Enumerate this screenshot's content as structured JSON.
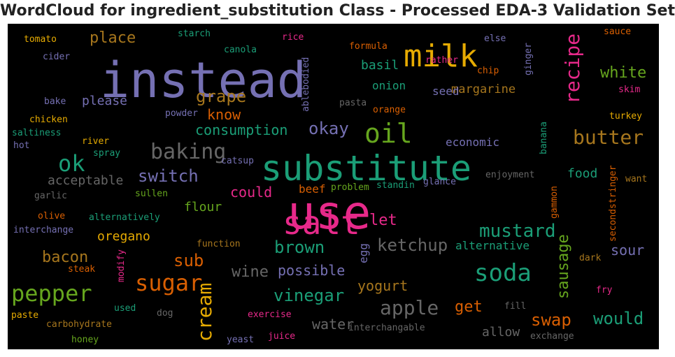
{
  "chart_data": {
    "type": "wordcloud",
    "title": "WordCloud for ingredient_substitution Class - Processed EDA-3 Validation Set",
    "background": "#000000",
    "colors": [
      "#1b9e77",
      "#d95f02",
      "#7570b3",
      "#e7298a",
      "#66a61e",
      "#e6ab02",
      "#a6761d",
      "#666666"
    ],
    "words": [
      {
        "text": "use",
        "color": "#e7298a"
      },
      {
        "text": "substitute",
        "color": "#1b9e77"
      },
      {
        "text": "instead",
        "color": "#7570b3"
      },
      {
        "text": "salt",
        "color": "#e7298a"
      },
      {
        "text": "milk",
        "color": "#e6ab02"
      },
      {
        "text": "oil",
        "color": "#66a61e"
      },
      {
        "text": "sugar",
        "color": "#d95f02"
      },
      {
        "text": "soda",
        "color": "#1b9e77"
      },
      {
        "text": "baking",
        "color": "#666666"
      },
      {
        "text": "ok",
        "color": "#1b9e77"
      },
      {
        "text": "pepper",
        "color": "#66a61e"
      },
      {
        "text": "butter",
        "color": "#a6761d"
      },
      {
        "text": "cream",
        "color": "#e6ab02"
      },
      {
        "text": "recipe",
        "color": "#e7298a"
      },
      {
        "text": "apple",
        "color": "#666666"
      },
      {
        "text": "mustard",
        "color": "#1b9e77"
      },
      {
        "text": "ketchup",
        "color": "#666666"
      },
      {
        "text": "vinegar",
        "color": "#1b9e77"
      },
      {
        "text": "okay",
        "color": "#7570b3"
      },
      {
        "text": "grape",
        "color": "#a6761d"
      },
      {
        "text": "switch",
        "color": "#7570b3"
      },
      {
        "text": "swap",
        "color": "#d95f02"
      },
      {
        "text": "would",
        "color": "#1b9e77"
      },
      {
        "text": "brown",
        "color": "#1b9e77"
      },
      {
        "text": "sub",
        "color": "#d95f02"
      },
      {
        "text": "white",
        "color": "#66a61e"
      },
      {
        "text": "consumption",
        "color": "#1b9e77"
      },
      {
        "text": "place",
        "color": "#a6761d"
      },
      {
        "text": "bacon",
        "color": "#a6761d"
      },
      {
        "text": "sausage",
        "color": "#66a61e"
      },
      {
        "text": "could",
        "color": "#e7298a"
      },
      {
        "text": "let",
        "color": "#e7298a"
      },
      {
        "text": "yogurt",
        "color": "#a6761d"
      },
      {
        "text": "wine",
        "color": "#666666"
      },
      {
        "text": "possible",
        "color": "#7570b3"
      },
      {
        "text": "sour",
        "color": "#7570b3"
      },
      {
        "text": "know",
        "color": "#d95f02"
      },
      {
        "text": "get",
        "color": "#d95f02"
      },
      {
        "text": "water",
        "color": "#666666"
      },
      {
        "text": "acceptable",
        "color": "#666666"
      },
      {
        "text": "oregano",
        "color": "#e6ab02"
      },
      {
        "text": "flour",
        "color": "#66a61e"
      },
      {
        "text": "food",
        "color": "#1b9e77"
      },
      {
        "text": "please",
        "color": "#7570b3"
      },
      {
        "text": "margarine",
        "color": "#a6761d"
      },
      {
        "text": "economic",
        "color": "#7570b3"
      },
      {
        "text": "alternative",
        "color": "#1b9e77"
      },
      {
        "text": "allow",
        "color": "#666666"
      },
      {
        "text": "onion",
        "color": "#1b9e77"
      },
      {
        "text": "seed",
        "color": "#7570b3"
      },
      {
        "text": "basil",
        "color": "#1b9e77"
      },
      {
        "text": "beef",
        "color": "#d95f02"
      },
      {
        "text": "egg",
        "color": "#7570b3"
      },
      {
        "text": "tomato",
        "color": "#e6ab02"
      },
      {
        "text": "starch",
        "color": "#1b9e77"
      },
      {
        "text": "rice",
        "color": "#e7298a"
      },
      {
        "text": "sauce",
        "color": "#d95f02"
      },
      {
        "text": "cider",
        "color": "#7570b3"
      },
      {
        "text": "canola",
        "color": "#1b9e77"
      },
      {
        "text": "formula",
        "color": "#d95f02"
      },
      {
        "text": "else",
        "color": "#7570b3"
      },
      {
        "text": "rather",
        "color": "#e7298a"
      },
      {
        "text": "chip",
        "color": "#d95f02"
      },
      {
        "text": "ginger",
        "color": "#7570b3"
      },
      {
        "text": "ablebodied",
        "color": "#7570b3"
      },
      {
        "text": "skim",
        "color": "#e7298a"
      },
      {
        "text": "bake",
        "color": "#7570b3"
      },
      {
        "text": "pasta",
        "color": "#666666"
      },
      {
        "text": "orange",
        "color": "#d95f02"
      },
      {
        "text": "chicken",
        "color": "#e6ab02"
      },
      {
        "text": "powder",
        "color": "#7570b3"
      },
      {
        "text": "turkey",
        "color": "#e6ab02"
      },
      {
        "text": "saltiness",
        "color": "#1b9e77"
      },
      {
        "text": "river",
        "color": "#e6ab02"
      },
      {
        "text": "hot",
        "color": "#7570b3"
      },
      {
        "text": "spray",
        "color": "#1b9e77"
      },
      {
        "text": "catsup",
        "color": "#7570b3"
      },
      {
        "text": "banana",
        "color": "#1b9e77"
      },
      {
        "text": "secondstringer",
        "color": "#d95f02"
      },
      {
        "text": "enjoyment",
        "color": "#666666"
      },
      {
        "text": "garlic",
        "color": "#666666"
      },
      {
        "text": "standin",
        "color": "#1b9e77"
      },
      {
        "text": "glance",
        "color": "#7570b3"
      },
      {
        "text": "problem",
        "color": "#66a61e"
      },
      {
        "text": "want",
        "color": "#a6761d"
      },
      {
        "text": "sullen",
        "color": "#66a61e"
      },
      {
        "text": "gammon",
        "color": "#d95f02"
      },
      {
        "text": "olive",
        "color": "#d95f02"
      },
      {
        "text": "alternatively",
        "color": "#1b9e77"
      },
      {
        "text": "interchange",
        "color": "#7570b3"
      },
      {
        "text": "function",
        "color": "#a6761d"
      },
      {
        "text": "dark",
        "color": "#a6761d"
      },
      {
        "text": "steak",
        "color": "#d95f02"
      },
      {
        "text": "modify",
        "color": "#e7298a"
      },
      {
        "text": "fry",
        "color": "#e7298a"
      },
      {
        "text": "used",
        "color": "#1b9e77"
      },
      {
        "text": "dog",
        "color": "#666666"
      },
      {
        "text": "exercise",
        "color": "#e7298a"
      },
      {
        "text": "fill",
        "color": "#666666"
      },
      {
        "text": "paste",
        "color": "#e6ab02"
      },
      {
        "text": "carbohydrate",
        "color": "#a6761d"
      },
      {
        "text": "interchangable",
        "color": "#666666"
      },
      {
        "text": "honey",
        "color": "#66a61e"
      },
      {
        "text": "yeast",
        "color": "#7570b3"
      },
      {
        "text": "juice",
        "color": "#e7298a"
      },
      {
        "text": "exchange",
        "color": "#666666"
      }
    ]
  }
}
